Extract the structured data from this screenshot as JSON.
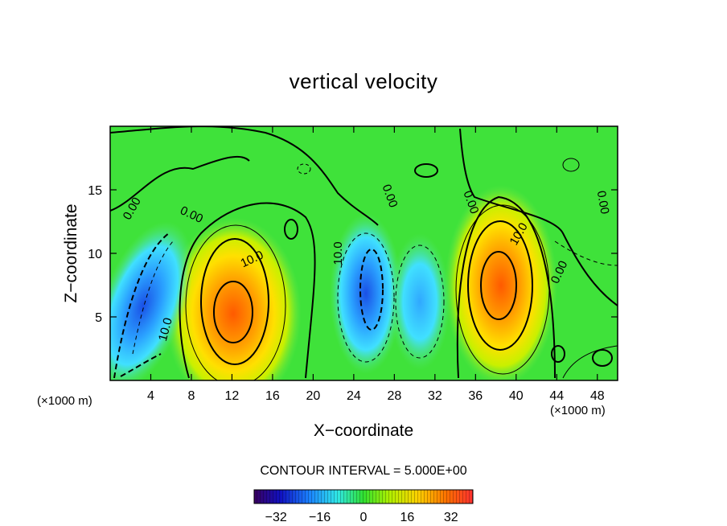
{
  "chart_data": {
    "type": "heatmap",
    "title": "vertical velocity",
    "xlabel": "X−coordinate",
    "ylabel": "Z−coordinate",
    "x_unit_label_left": "(×1000 m)",
    "x_unit_label_right": "(×1000 m)",
    "contour_interval_text": "CONTOUR INTERVAL = 5.000E+00",
    "xlim": [
      0,
      50
    ],
    "ylim": [
      0,
      20
    ],
    "x_ticks": [
      4,
      8,
      12,
      16,
      20,
      24,
      28,
      32,
      36,
      40,
      44,
      48
    ],
    "y_ticks": [
      5,
      10,
      15
    ],
    "colorbar": {
      "min": -40,
      "max": 40,
      "tick_values": [
        -32,
        -16,
        0,
        16,
        32
      ],
      "tick_labels": [
        "−32",
        "−16",
        "0",
        "16",
        "32"
      ]
    },
    "contour_labels": [
      {
        "text": "0.00",
        "x": 2.2,
        "y": 13.5,
        "angle": 60
      },
      {
        "text": "0.00",
        "x": 8.0,
        "y": 13.0,
        "angle": -25
      },
      {
        "text": "10.0",
        "x": 14.0,
        "y": 9.5,
        "angle": 25
      },
      {
        "text": "10.0",
        "x": 5.5,
        "y": 4.0,
        "angle": 75
      },
      {
        "text": "10.0",
        "x": 22.5,
        "y": 10.0,
        "angle": 90
      },
      {
        "text": "0.00",
        "x": 27.5,
        "y": 14.5,
        "angle": -70
      },
      {
        "text": "0.00",
        "x": 35.5,
        "y": 14.0,
        "angle": -70
      },
      {
        "text": "10.0",
        "x": 40.3,
        "y": 11.5,
        "angle": 60
      },
      {
        "text": "0.00",
        "x": 44.3,
        "y": 8.5,
        "angle": 65
      },
      {
        "text": "0.00",
        "x": 48.5,
        "y": 14.0,
        "angle": -80
      }
    ],
    "extrema": [
      {
        "type": "updraft",
        "x": 12.5,
        "z": 5,
        "value": 34
      },
      {
        "type": "updraft",
        "x": 38.5,
        "z": 7.5,
        "value": 33
      },
      {
        "type": "downdraft",
        "x": 3.5,
        "z": 6,
        "value": -30
      },
      {
        "type": "downdraft",
        "x": 25.0,
        "z": 6.5,
        "value": -20
      },
      {
        "type": "downdraft",
        "x": 30.0,
        "z": 6.0,
        "value": -15
      }
    ]
  }
}
